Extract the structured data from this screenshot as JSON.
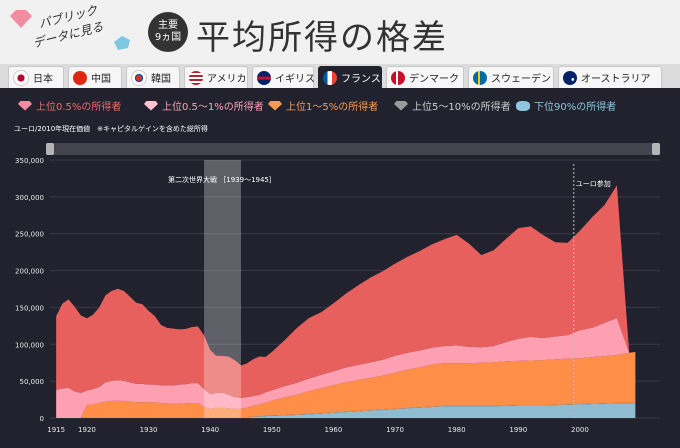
{
  "header": {
    "logo_line1": "パブリック",
    "logo_line2": "データに見る",
    "badge_line1": "主要",
    "badge_line2": "9ヵ国",
    "title": "平均所得の格差"
  },
  "tabs": [
    {
      "label": "日本",
      "flag": "jp",
      "color": "#ffffff"
    },
    {
      "label": "中国",
      "flag": "cn",
      "color": "#de2910"
    },
    {
      "label": "韓国",
      "flag": "kr",
      "color": "#ffffff"
    },
    {
      "label": "アメリカ",
      "flag": "us",
      "color": "#3c3b6e"
    },
    {
      "label": "イギリス",
      "flag": "gb",
      "color": "#012169"
    },
    {
      "label": "フランス",
      "flag": "fr",
      "color": "#0055a4",
      "active": true
    },
    {
      "label": "デンマーク",
      "flag": "dk",
      "color": "#c8102e"
    },
    {
      "label": "スウェーデン",
      "flag": "se",
      "color": "#006aa7"
    },
    {
      "label": "オーストラリア",
      "flag": "au",
      "color": "#012169"
    }
  ],
  "legend": [
    {
      "label": "上位0.5%の所得者",
      "color": "#f26a6a"
    },
    {
      "label": "上位0.5～1%の所得者",
      "color": "#ffa0b4"
    },
    {
      "label": "上位1～5%の所得者",
      "color": "#ff9a50"
    },
    {
      "label": "上位5～10%の所得者",
      "color": "#cfcfcf"
    },
    {
      "label": "下位90%の所得者",
      "color": "#8ec6df"
    }
  ],
  "note": "ユーロ/2010年現在価値　※キャピタルゲインを含めた総所得",
  "chart_data": {
    "type": "area",
    "stacked": true,
    "xlim": [
      1914,
      2013
    ],
    "ylim": [
      0,
      350000
    ],
    "yticks": [
      0,
      50000,
      100000,
      150000,
      200000,
      250000,
      300000,
      350000
    ],
    "ytick_labels": [
      "0",
      "50,000",
      "100,000",
      "150,000",
      "200,000",
      "250,000",
      "300,000",
      "350,000"
    ],
    "xticks": [
      1915,
      1920,
      1930,
      1940,
      1950,
      1960,
      1970,
      1980,
      1990,
      2000
    ],
    "xtick_labels": [
      "1915",
      "1920",
      "1930",
      "1940",
      "1950",
      "1960",
      "1970",
      "1980",
      "1990",
      "2000"
    ],
    "annotations": [
      {
        "text": "第二次世界大戦 ［1939～1945］",
        "x_start": 1939,
        "x_end": 1945
      },
      {
        "text": "ユーロ参加",
        "x": 1999
      }
    ],
    "x": [
      1915,
      1916,
      1917,
      1918,
      1919,
      1920,
      1921,
      1922,
      1923,
      1924,
      1925,
      1926,
      1927,
      1928,
      1929,
      1930,
      1931,
      1932,
      1933,
      1934,
      1935,
      1936,
      1937,
      1938,
      1939,
      1940,
      1941,
      1942,
      1943,
      1944,
      1945,
      1946,
      1947,
      1948,
      1949,
      1950,
      1952,
      1954,
      1956,
      1958,
      1960,
      1962,
      1964,
      1966,
      1968,
      1970,
      1972,
      1974,
      1976,
      1978,
      1980,
      1982,
      1984,
      1986,
      1988,
      1990,
      1992,
      1994,
      1996,
      1998,
      2000,
      2002,
      2004,
      2006,
      2008,
      2009
    ],
    "series": [
      {
        "name": "下位90%の所得者",
        "values": [
          0,
          0,
          0,
          0,
          0,
          1000,
          1000,
          1000,
          1000,
          1000,
          1000,
          1000,
          1000,
          1000,
          1000,
          1000,
          1000,
          1000,
          1000,
          1000,
          1000,
          1000,
          1000,
          1000,
          1000,
          1000,
          1000,
          1000,
          1000,
          1000,
          1000,
          1000,
          1500,
          2000,
          2500,
          3000,
          3500,
          4000,
          5000,
          6000,
          7000,
          8000,
          9000,
          10000,
          11000,
          12000,
          13000,
          14000,
          15000,
          16000,
          16000,
          16000,
          16000,
          16000,
          16500,
          17000,
          17000,
          17000,
          17500,
          18000,
          18500,
          19000,
          19500,
          20000,
          20000,
          20000
        ]
      },
      {
        "name": "上位5～10%の所得者",
        "values": [
          0,
          0,
          0,
          0,
          0,
          300,
          300,
          300,
          300,
          300,
          300,
          300,
          300,
          300,
          300,
          300,
          300,
          300,
          300,
          300,
          300,
          300,
          300,
          300,
          300,
          300,
          300,
          300,
          300,
          300,
          300,
          300,
          400,
          400,
          400,
          500,
          500,
          500,
          500,
          500,
          500,
          500,
          500,
          500,
          500,
          500,
          500,
          500,
          500,
          500,
          500,
          500,
          500,
          500,
          500,
          500,
          500,
          500,
          500,
          500,
          500,
          500,
          500,
          500,
          500,
          500
        ]
      },
      {
        "name": "上位1～5%の所得者",
        "values": [
          0,
          0,
          0,
          0,
          0,
          17000,
          17000,
          19000,
          21000,
          22000,
          22000,
          22000,
          21000,
          20000,
          20000,
          20000,
          20000,
          19000,
          18500,
          18000,
          18000,
          18500,
          19000,
          19000,
          14000,
          11000,
          13000,
          13000,
          12000,
          11000,
          11000,
          13000,
          15000,
          16000,
          18000,
          20000,
          24000,
          27000,
          31000,
          34000,
          37000,
          40000,
          42000,
          44000,
          46000,
          49000,
          52000,
          54000,
          57000,
          58000,
          58000,
          58000,
          58500,
          59000,
          60000,
          60000,
          60500,
          61000,
          61500,
          62000,
          62000,
          63000,
          64000,
          65000,
          68000,
          69000
        ]
      },
      {
        "name": "上位0.5～1%の所得者",
        "values": [
          38000,
          40000,
          41000,
          36000,
          34000,
          19000,
          21000,
          22000,
          26000,
          27000,
          28000,
          27000,
          26000,
          25000,
          25000,
          24000,
          24000,
          24000,
          24500,
          25000,
          26000,
          26000,
          27000,
          27000,
          24000,
          20000,
          20000,
          20000,
          18000,
          16000,
          15000,
          14000,
          13000,
          13000,
          14000,
          14000,
          15000,
          16000,
          17000,
          18000,
          19000,
          20000,
          20500,
          21000,
          21500,
          23000,
          23000,
          23000,
          23000,
          23000,
          24000,
          22000,
          21000,
          22000,
          26000,
          30000,
          32000,
          30000,
          31000,
          32000,
          38000,
          40000,
          45000,
          50000,
          0,
          0
        ]
      },
      {
        "name": "上位0.5%の所得者",
        "values": [
          100000,
          115000,
          120000,
          115000,
          105000,
          98000,
          101000,
          108000,
          118000,
          122000,
          124000,
          122000,
          116000,
          110000,
          108000,
          100000,
          93000,
          82000,
          78000,
          77000,
          75000,
          75000,
          76000,
          77000,
          73000,
          60000,
          50000,
          50000,
          52000,
          50000,
          44000,
          46000,
          50000,
          52000,
          48000,
          52000,
          62000,
          74000,
          82000,
          85000,
          92000,
          100000,
          108000,
          115000,
          120000,
          125000,
          130000,
          135000,
          140000,
          145000,
          150000,
          140000,
          125000,
          130000,
          140000,
          150000,
          150000,
          140000,
          128000,
          125000,
          135000,
          150000,
          160000,
          180000,
          0,
          0
        ]
      }
    ]
  }
}
